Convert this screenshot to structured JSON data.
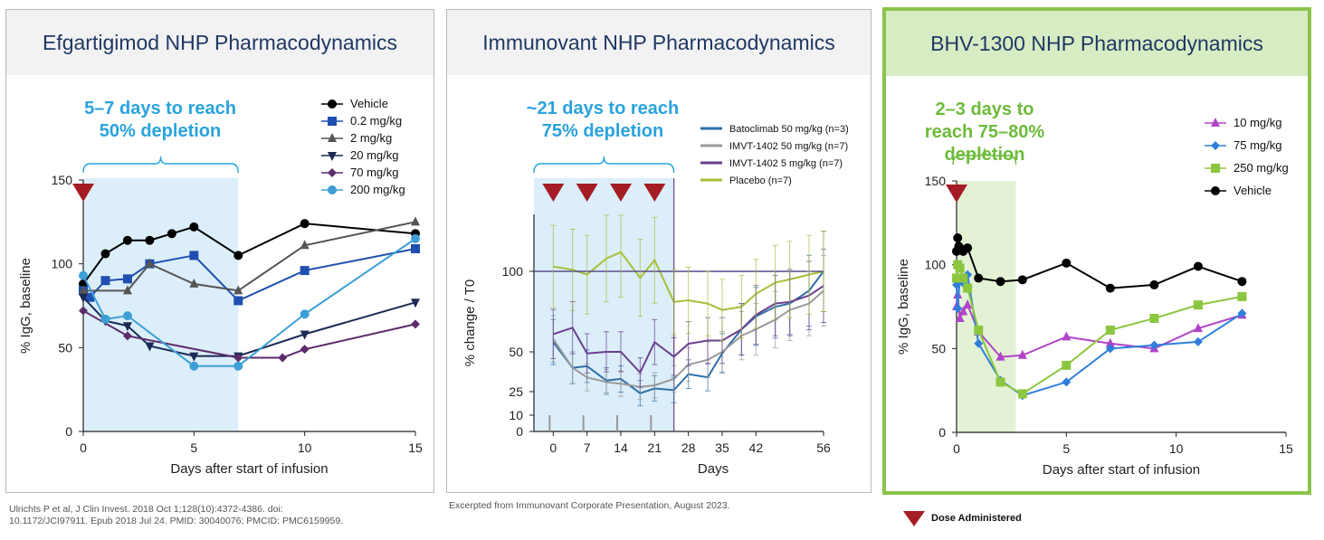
{
  "panels": [
    {
      "title": "Efgartigimod NHP Pharmacodynamics"
    },
    {
      "title": "Immunovant NHP Pharmacodynamics"
    },
    {
      "title": "BHV-1300 NHP Pharmacodynamics"
    }
  ],
  "footnotes": {
    "left_line1": "Ulrichts P et al, J Clin Invest. 2018 Oct 1;128(10):4372-4386. doi:",
    "left_line2": "10.1172/JCI97911. Epub 2018 Jul 24. PMID: 30040076; PMCID: PMC6159959.",
    "middle": "Excerpted from Immunovant Corporate Presentation, August 2023.",
    "legend": "Dose Administered"
  },
  "colors": {
    "dose_marker": "#a51d24",
    "highlight_border": "#8bc34a",
    "title_text": "#1f3864"
  },
  "chart_data": [
    {
      "type": "line",
      "title": "Efgartigimod NHP Pharmacodynamics",
      "xlabel": "Days after start of infusion",
      "ylabel": "% IgG, baseline",
      "xlim": [
        0,
        15
      ],
      "ylim": [
        0,
        150
      ],
      "xticks": [
        "0",
        "5",
        "10",
        "15"
      ],
      "yticks": [
        "0",
        "50",
        "100",
        "150"
      ],
      "legend_position": "top-right",
      "annotation": {
        "lines": [
          "5–7 days to reach",
          "50% depletion"
        ],
        "color": "#29a3dd"
      },
      "shaded_region": [
        0,
        7
      ],
      "dose_days": [
        0
      ],
      "series": [
        {
          "name": "Vehicle",
          "color": "#000000",
          "marker": "circle",
          "x": [
            0,
            1,
            2,
            3,
            4,
            5,
            7,
            10,
            15
          ],
          "y": [
            88,
            106,
            114,
            114,
            118,
            122,
            105,
            124,
            118
          ]
        },
        {
          "name": "0.2 mg/kg",
          "color": "#1f4fb0",
          "marker": "square",
          "x": [
            0,
            0.3,
            1,
            2,
            3,
            5,
            7,
            10,
            15
          ],
          "y": [
            84,
            80,
            90,
            91,
            100,
            105,
            78,
            96,
            109
          ]
        },
        {
          "name": "2 mg/kg",
          "color": "#555555",
          "marker": "triangle",
          "x": [
            0,
            2,
            3,
            5,
            7,
            10,
            15
          ],
          "y": [
            84,
            84,
            100,
            88,
            84,
            111,
            125
          ]
        },
        {
          "name": "20 mg/kg",
          "color": "#1b2a55",
          "marker": "triangle-down",
          "x": [
            0,
            1,
            2,
            3,
            5,
            7,
            10,
            15
          ],
          "y": [
            80,
            66,
            63,
            51,
            45,
            45,
            58,
            77
          ]
        },
        {
          "name": "70 mg/kg",
          "color": "#5c2b6b",
          "marker": "diamond",
          "x": [
            0,
            2,
            7,
            9,
            10,
            15
          ],
          "y": [
            72,
            57,
            44,
            44,
            49,
            64
          ]
        },
        {
          "name": "200 mg/kg",
          "color": "#3d9fd6",
          "marker": "circle",
          "x": [
            0,
            1,
            2,
            5,
            7,
            10,
            15
          ],
          "y": [
            93,
            67,
            69,
            39,
            39,
            70,
            115
          ]
        }
      ]
    },
    {
      "type": "line",
      "title": "Immunovant NHP Pharmacodynamics",
      "xlabel": "Days",
      "ylabel": "% change / T0",
      "xlim": [
        -4,
        56
      ],
      "ylim": [
        0,
        135
      ],
      "xticks": [
        "0",
        "7",
        "14",
        "21",
        "28",
        "35",
        "42",
        "56"
      ],
      "yticks": [
        "0",
        "10",
        "25",
        "50",
        "100"
      ],
      "legend_position": "top-right",
      "annotation": {
        "lines": [
          "~21 days to reach",
          "75% depletion"
        ],
        "color": "#29a3dd"
      },
      "shaded_region": [
        -4,
        25
      ],
      "dose_days": [
        0,
        7,
        14,
        21
      ],
      "series": [
        {
          "name": "Batoclimab 50 mg/kg (n=3)",
          "color": "#2f6fa8",
          "x": [
            0,
            4,
            7,
            11,
            14,
            18,
            21,
            25,
            28,
            32,
            35,
            39,
            42,
            46,
            49,
            53,
            56
          ],
          "y": [
            56,
            40,
            41,
            32,
            33,
            24,
            27,
            26,
            36,
            34,
            49,
            64,
            72,
            78,
            80,
            88,
            100
          ]
        },
        {
          "name": "IMVT-1402 50 mg/kg (n=7)",
          "color": "#9a9a9a",
          "x": [
            0,
            4,
            7,
            11,
            14,
            18,
            21,
            25,
            28,
            32,
            35,
            39,
            42,
            46,
            49,
            53,
            56
          ],
          "y": [
            58,
            40,
            34,
            31,
            30,
            28,
            29,
            33,
            42,
            45,
            50,
            60,
            64,
            70,
            76,
            80,
            88
          ]
        },
        {
          "name": "IMVT-1402 5 mg/kg (n=7)",
          "color": "#6a3f8e",
          "x": [
            0,
            4,
            7,
            11,
            14,
            18,
            21,
            25,
            28,
            32,
            35,
            39,
            42,
            46,
            49,
            53,
            56
          ],
          "y": [
            61,
            65,
            49,
            50,
            50,
            37,
            56,
            47,
            55,
            57,
            57,
            64,
            73,
            80,
            81,
            85,
            91
          ]
        },
        {
          "name": "Placebo (n=7)",
          "color": "#a6bf3a",
          "x": [
            0,
            4,
            7,
            11,
            14,
            18,
            21,
            25,
            28,
            32,
            35,
            39,
            42,
            46,
            49,
            53,
            56
          ],
          "y": [
            103,
            101,
            98,
            108,
            112,
            96,
            107,
            81,
            82,
            80,
            76,
            78,
            86,
            93,
            95,
            98,
            100
          ]
        }
      ]
    },
    {
      "type": "line",
      "title": "BHV-1300 NHP Pharmacodynamics",
      "xlabel": "Days after start of infusion",
      "ylabel": "% IgG, baseline",
      "xlim": [
        0,
        15
      ],
      "ylim": [
        0,
        150
      ],
      "xticks": [
        "0",
        "5",
        "10",
        "15"
      ],
      "yticks": [
        "0",
        "50",
        "100",
        "150"
      ],
      "legend_position": "top-right",
      "annotation": {
        "lines": [
          "2–3 days to",
          "reach 75–80%",
          "depletion"
        ],
        "color": "#6dbb3a"
      },
      "shaded_region": [
        0,
        2.7
      ],
      "dose_days": [
        0
      ],
      "series": [
        {
          "name": "10 mg/kg",
          "color": "#b144c8",
          "marker": "triangle",
          "x": [
            0,
            0.05,
            0.15,
            0.3,
            0.5,
            1,
            2,
            3,
            5,
            7,
            9,
            11,
            13
          ],
          "y": [
            75,
            82,
            68,
            72,
            76,
            60,
            45,
            46,
            57,
            53,
            50,
            62,
            70
          ]
        },
        {
          "name": "75 mg/kg",
          "color": "#2e7fdc",
          "marker": "diamond",
          "x": [
            0,
            0.05,
            0.15,
            0.3,
            0.5,
            1,
            2,
            3,
            5,
            7,
            9,
            11,
            13
          ],
          "y": [
            88,
            74,
            92,
            89,
            94,
            53,
            31,
            22,
            30,
            50,
            52,
            54,
            71
          ]
        },
        {
          "name": "250 mg/kg",
          "color": "#8cc63f",
          "marker": "square",
          "x": [
            0,
            0.05,
            0.15,
            0.3,
            0.5,
            1,
            2,
            3,
            5,
            7,
            9,
            11,
            13
          ],
          "y": [
            92,
            100,
            98,
            92,
            86,
            61,
            30,
            23,
            40,
            61,
            68,
            76,
            81
          ]
        },
        {
          "name": "Vehicle",
          "color": "#000000",
          "marker": "circle",
          "x": [
            0,
            0.05,
            0.1,
            0.15,
            0.3,
            0.5,
            1,
            2,
            3,
            5,
            7,
            9,
            11,
            13
          ],
          "y": [
            108,
            116,
            111,
            110,
            108,
            110,
            92,
            90,
            91,
            101,
            86,
            88,
            99,
            90
          ]
        }
      ]
    }
  ]
}
